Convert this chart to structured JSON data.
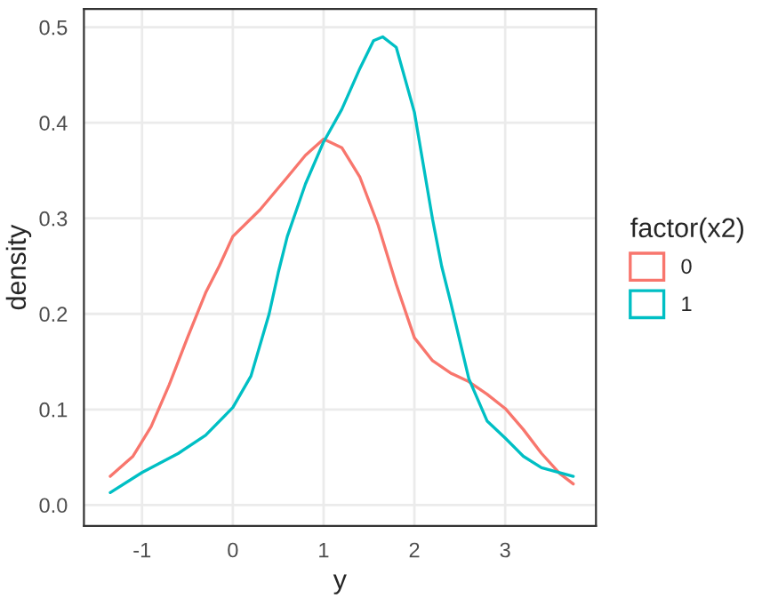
{
  "chart_data": {
    "type": "line",
    "xlabel": "y",
    "ylabel": "density",
    "legend_title": "factor(x2)",
    "legend": "right",
    "grid": true,
    "xlim": [
      -1.64,
      4.0
    ],
    "xticks": [
      {
        "value": -1,
        "label": "-1"
      },
      0,
      1,
      2,
      3
    ],
    "ylim": [
      -0.022,
      0.519
    ],
    "yticks": [
      {
        "value": 0,
        "label": "0.0"
      },
      0.1,
      0.2,
      0.3,
      0.4,
      0.5
    ],
    "series": [
      {
        "name": "0",
        "color": "#f8766d",
        "x": [
          -1.35,
          -1.1,
          -0.9,
          -0.7,
          -0.5,
          -0.3,
          -0.15,
          0.0,
          0.3,
          0.6,
          0.8,
          1.0,
          1.2,
          1.4,
          1.6,
          1.8,
          2.0,
          2.2,
          2.4,
          2.6,
          2.8,
          3.0,
          3.2,
          3.4,
          3.6,
          3.75
        ],
        "values": [
          0.03,
          0.051,
          0.082,
          0.126,
          0.175,
          0.222,
          0.25,
          0.281,
          0.309,
          0.343,
          0.366,
          0.383,
          0.374,
          0.343,
          0.293,
          0.231,
          0.175,
          0.151,
          0.138,
          0.129,
          0.116,
          0.101,
          0.079,
          0.054,
          0.033,
          0.022
        ]
      },
      {
        "name": "1",
        "color": "#00bfc4",
        "x": [
          -1.35,
          -1.0,
          -0.6,
          -0.3,
          0.0,
          0.2,
          0.4,
          0.5,
          0.6,
          0.8,
          1.0,
          1.2,
          1.4,
          1.55,
          1.65,
          1.8,
          2.0,
          2.2,
          2.3,
          2.4,
          2.6,
          2.8,
          3.0,
          3.2,
          3.4,
          3.75
        ],
        "values": [
          0.013,
          0.034,
          0.054,
          0.073,
          0.102,
          0.135,
          0.2,
          0.243,
          0.281,
          0.336,
          0.38,
          0.414,
          0.457,
          0.486,
          0.49,
          0.479,
          0.411,
          0.299,
          0.25,
          0.212,
          0.132,
          0.088,
          0.07,
          0.051,
          0.039,
          0.03
        ]
      }
    ]
  }
}
